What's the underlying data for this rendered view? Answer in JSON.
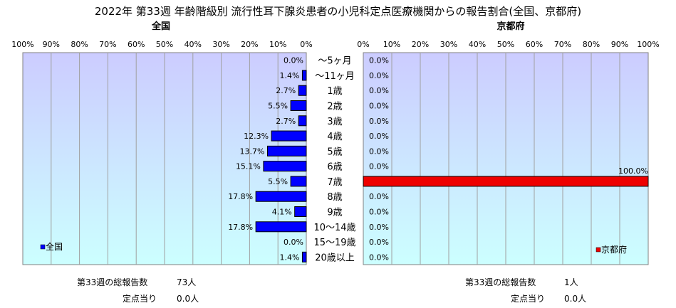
{
  "title": "2022年 第33週 年齢階級別 流行性耳下腺炎患者の小児科定点医療機関からの報告割合(全国、京都府)",
  "colors": {
    "national_bar": "#0000ff",
    "kyoto_bar": "#ee0000",
    "plot_top": "#ccccff",
    "plot_bottom": "#ccffff"
  },
  "chart_data": [
    {
      "type": "bar",
      "orientation": "horizontal",
      "direction": "right-to-left",
      "title": "全国",
      "series": [
        {
          "name": "全国",
          "values": [
            0.0,
            1.4,
            2.7,
            5.5,
            2.7,
            12.3,
            13.7,
            15.1,
            5.5,
            17.8,
            4.1,
            17.8,
            0.0,
            1.4
          ]
        }
      ],
      "value_labels": [
        "0.0%",
        "1.4%",
        "2.7%",
        "5.5%",
        "2.7%",
        "12.3%",
        "13.7%",
        "15.1%",
        "5.5%",
        "17.8%",
        "4.1%",
        "17.8%",
        "0.0%",
        "1.4%"
      ],
      "xlim": [
        0,
        100
      ],
      "ticks": [
        "100%",
        "90%",
        "80%",
        "70%",
        "60%",
        "50%",
        "40%",
        "30%",
        "20%",
        "10%",
        "0%"
      ],
      "grid": true,
      "legend": "bottom-left"
    },
    {
      "type": "bar",
      "orientation": "horizontal",
      "direction": "left-to-right",
      "title": "京都府",
      "series": [
        {
          "name": "京都府",
          "values": [
            0.0,
            0.0,
            0.0,
            0.0,
            0.0,
            0.0,
            0.0,
            0.0,
            100.0,
            0.0,
            0.0,
            0.0,
            0.0,
            0.0
          ]
        }
      ],
      "value_labels": [
        "0.0%",
        "0.0%",
        "0.0%",
        "0.0%",
        "0.0%",
        "0.0%",
        "0.0%",
        "0.0%",
        "100.0%",
        "0.0%",
        "0.0%",
        "0.0%",
        "0.0%",
        "0.0%"
      ],
      "xlim": [
        0,
        100
      ],
      "ticks": [
        "0%",
        "10%",
        "20%",
        "30%",
        "40%",
        "50%",
        "60%",
        "70%",
        "80%",
        "90%",
        "100%"
      ],
      "grid": true,
      "legend": "bottom-right"
    }
  ],
  "categories": [
    "～5ヶ月",
    "～11ヶ月",
    "1歳",
    "2歳",
    "3歳",
    "4歳",
    "5歳",
    "6歳",
    "7歳",
    "8歳",
    "9歳",
    "10～14歳",
    "15～19歳",
    "20歳以上"
  ],
  "footer": {
    "national": {
      "total_label": "第33週の総報告数",
      "total_value": "73人",
      "per_label": "定点当り",
      "per_value": "0.0人"
    },
    "kyoto": {
      "total_label": "第33週の総報告数",
      "total_value": "1人",
      "per_label": "定点当り",
      "per_value": "0.0人"
    }
  }
}
